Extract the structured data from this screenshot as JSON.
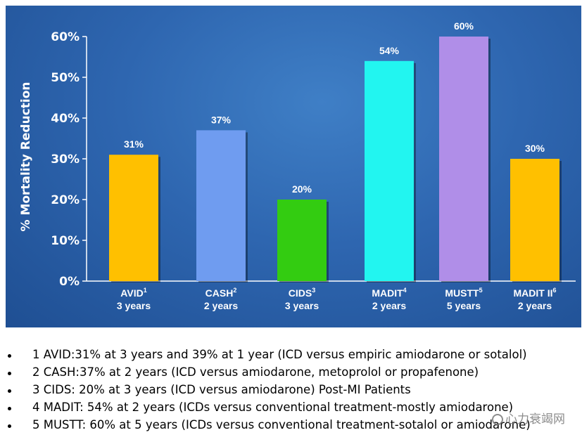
{
  "chart_data": {
    "type": "bar",
    "ylabel": "% Mortality Reduction",
    "ylim": [
      0,
      60
    ],
    "yticks": [
      "0%",
      "10%",
      "20%",
      "30%",
      "40%",
      "50%",
      "60%"
    ],
    "categories": [
      {
        "name": "AVID",
        "sup": "1",
        "years": "3 years"
      },
      {
        "name": "CASH",
        "sup": "2",
        "years": "2 years"
      },
      {
        "name": "CIDS",
        "sup": "3",
        "years": "3 years"
      },
      {
        "name": "MADIT",
        "sup": "4",
        "years": "2 years"
      },
      {
        "name": "MUSTT",
        "sup": "5",
        "years": "5 years"
      },
      {
        "name": "MADIT II",
        "sup": "6",
        "years": "2 years"
      }
    ],
    "values": [
      31,
      37,
      20,
      54,
      60,
      30
    ],
    "value_labels": [
      "31%",
      "37%",
      "20%",
      "54%",
      "60%",
      "30%"
    ],
    "colors": [
      "#ffc000",
      "#6f9cf0",
      "#33cc11",
      "#22f5f0",
      "#b08ee8",
      "#ffc000"
    ]
  },
  "notes": [
    "1 AVID:31% at 3 years and 39% at 1 year (ICD versus empiric amiodarone or sotalol)",
    "2 CASH:37% at 2 years (ICD versus amiodarone, metoprolol or propafenone)",
    "3 CIDS: 20% at 3 years (ICD versus amiodarone) Post-MI Patients",
    "4 MADIT: 54% at 2 years (ICDs versus conventional treatment-mostly amiodarone)",
    "5 MUSTT: 60% at 5 years (ICDs versus conventional treatment-sotalol  or amiodarone)"
  ],
  "watermark": "心力衰竭网"
}
